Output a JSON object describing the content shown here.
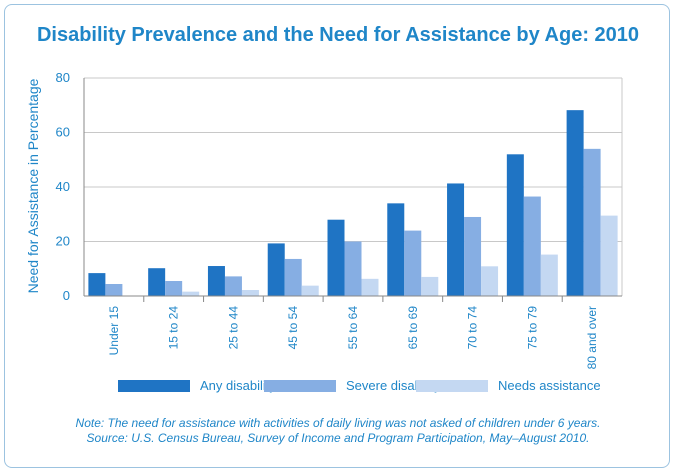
{
  "colors": {
    "any": "#1f74c4",
    "severe": "#86aee3",
    "needs": "#c4d8f2",
    "text": "#1f86c8",
    "grid": "#c8c8c8",
    "frame": "#9cc3e0"
  },
  "chart_data": {
    "type": "bar",
    "title": "Disability Prevalence and the Need for Assistance by Age: 2010",
    "ylabel": "Need for Assistance in Percentage",
    "xlabel": "",
    "ylim": [
      0,
      80
    ],
    "yticks": [
      0,
      20,
      40,
      60,
      80
    ],
    "grid": true,
    "legend_position": "bottom",
    "categories": [
      "Under 15",
      "15 to 24",
      "25 to 44",
      "45 to 54",
      "55 to 64",
      "65 to 69",
      "70 to 74",
      "75 to 79",
      "80 and over"
    ],
    "series": [
      {
        "name": "Any disability",
        "color_key": "any",
        "values": [
          8.4,
          10.2,
          11.0,
          19.3,
          28.0,
          34.0,
          41.3,
          52.0,
          68.2
        ]
      },
      {
        "name": "Severe disability",
        "color_key": "severe",
        "values": [
          4.4,
          5.5,
          7.2,
          13.6,
          20.0,
          24.0,
          29.0,
          36.5,
          54.0
        ]
      },
      {
        "name": "Needs assistance",
        "color_key": "needs",
        "values": [
          0,
          1.6,
          2.2,
          3.8,
          6.3,
          7.0,
          10.9,
          15.2,
          29.5
        ]
      }
    ]
  },
  "note": {
    "line1": "Note: The need for assistance with activities of daily living was not asked of children under 6 years.",
    "line2": "Source: U.S. Census Bureau, Survey of Income and Program Participation, May–August 2010."
  }
}
